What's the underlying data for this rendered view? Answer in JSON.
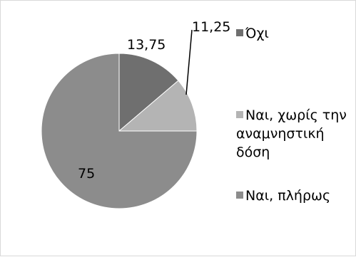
{
  "chart_data": {
    "type": "pie",
    "slices": [
      {
        "label": "Όχι",
        "value": 13.75,
        "color": "#6f6f6f",
        "data_label": "13,75"
      },
      {
        "label": "Ναι, χωρίς την αναμνηστική δόση",
        "value": 11.25,
        "color": "#b4b4b4",
        "data_label": "11,25"
      },
      {
        "label": "Ναι, πλήρως",
        "value": 75,
        "color": "#8c8c8c",
        "data_label": "75"
      }
    ],
    "legend": {
      "position": "right",
      "entries": [
        {
          "lines": [
            "Όχι"
          ]
        },
        {
          "lines": [
            "Ναι, χωρίς την",
            "αναμνηστική",
            "δόση"
          ]
        },
        {
          "lines": [
            "Ναι, πλήρως"
          ]
        }
      ]
    },
    "start_angle": "12 o'clock",
    "direction": "clockwise"
  }
}
